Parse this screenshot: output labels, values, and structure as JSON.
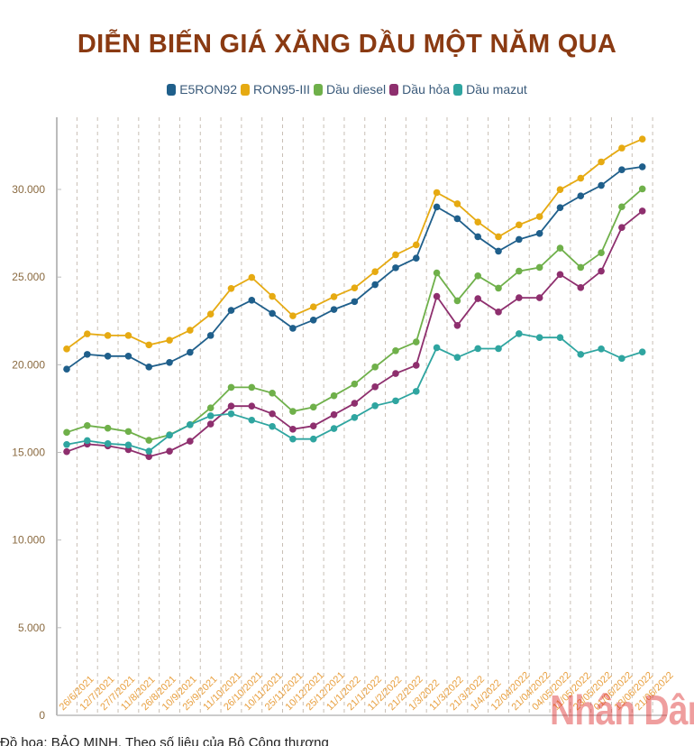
{
  "chart_data": {
    "type": "line",
    "title": "DIỄN BIẾN GIÁ XĂNG DẦU MỘT NĂM QUA",
    "xlabel": "",
    "ylabel": "",
    "ylim": [
      0,
      33000
    ],
    "yticks": [
      "0",
      "5.000",
      "10.000",
      "15.000",
      "20.000",
      "25.000",
      "30.000"
    ],
    "ytick_values": [
      0,
      5000,
      10000,
      15000,
      20000,
      25000,
      30000
    ],
    "grid": "vertical dashed",
    "legend": "top",
    "categories": [
      "26/6/2021",
      "12/7/2021",
      "27/7/2021",
      "11/8/2021",
      "26/8/2021",
      "10/9/2021",
      "25/9/2021",
      "11/10/2021",
      "26/10/2021",
      "10/11/2021",
      "25/11/2021",
      "10/12/2021",
      "25/12/2021",
      "11/1/2022",
      "21/1/2022",
      "11/2/2022",
      "21/2/2022",
      "1/3/2022",
      "11/3/2022",
      "21/3/2022",
      "1/4/2022",
      "12/04/2022",
      "21/04/2022",
      "04/05/2022",
      "11/05/2022",
      "23/05/2022",
      "01/06/2022",
      "13/06/2022",
      "21/06/2022"
    ],
    "series": [
      {
        "name": "E5RON92",
        "color": "#1f5f8b",
        "values": [
          19750,
          20590,
          20490,
          20490,
          19870,
          20130,
          20710,
          21670,
          23100,
          23680,
          22930,
          22080,
          22550,
          23150,
          23600,
          24570,
          25530,
          26080,
          29000,
          28330,
          27300,
          26480,
          27150,
          27490,
          28960,
          29630,
          30230,
          31120,
          31290
        ]
      },
      {
        "name": "RON95-III",
        "color": "#e6aa12",
        "values": [
          20900,
          21760,
          21670,
          21670,
          21130,
          21400,
          21970,
          22890,
          24350,
          24980,
          23900,
          22790,
          23300,
          23880,
          24380,
          25310,
          26270,
          26840,
          29820,
          29180,
          28140,
          27300,
          27980,
          28450,
          29990,
          30640,
          31570,
          32360,
          32870
        ]
      },
      {
        "name": "Dầu diesel",
        "color": "#6fb04a",
        "values": [
          16140,
          16530,
          16380,
          16190,
          15690,
          16000,
          16580,
          17540,
          18710,
          18710,
          18380,
          17340,
          17580,
          18230,
          18900,
          19870,
          20800,
          21300,
          25240,
          23650,
          25070,
          24370,
          25340,
          25550,
          26650,
          25550,
          26390,
          29010,
          30030
        ]
      },
      {
        "name": "Dầu hỏa",
        "color": "#8e2f6e",
        "values": [
          15040,
          15470,
          15370,
          15160,
          14760,
          15070,
          15640,
          16620,
          17640,
          17640,
          17200,
          16320,
          16510,
          17150,
          17800,
          18740,
          19500,
          19970,
          23900,
          22240,
          23770,
          23010,
          23820,
          23820,
          25150,
          24400,
          25340,
          27830,
          28770
        ]
      },
      {
        "name": "Dầu mazut",
        "color": "#2fa5a0",
        "values": [
          15450,
          15670,
          15500,
          15420,
          15070,
          15980,
          16580,
          17090,
          17200,
          16840,
          16480,
          15760,
          15760,
          16360,
          16990,
          17660,
          17940,
          18480,
          20970,
          20420,
          20920,
          20920,
          21770,
          21550,
          21550,
          20590,
          20900,
          20360,
          20730
        ]
      }
    ]
  },
  "footer": "Đồ họa: BẢO MINH. Theo số liệu của Bộ Công thương",
  "watermark": "Nhân Dân",
  "colors": {
    "title": "#8a3a12",
    "tick": "#e8a040",
    "axis": "#bbbbbb"
  }
}
